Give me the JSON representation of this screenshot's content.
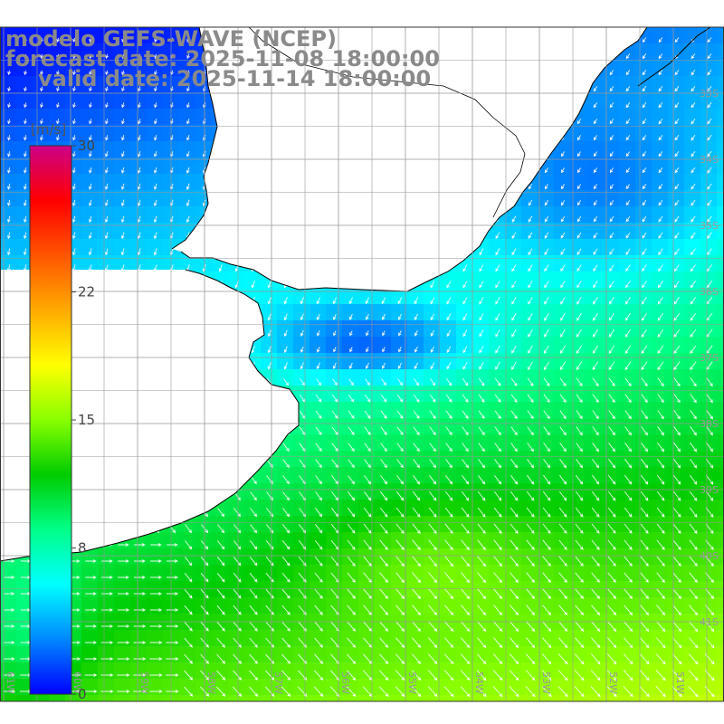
{
  "title": {
    "line1": "modelo GEFS-WAVE (NCEP)",
    "line2": "forecast date: 2025-11-08 18:00:00",
    "line3": "valid date: 2025-11-14 18:00:00"
  },
  "colorbar": {
    "unit": "[m/s]",
    "min": 0,
    "max": 30,
    "tick_labels": [
      "30",
      "22",
      "15",
      "8",
      "0"
    ],
    "tick_values": [
      30,
      22,
      15,
      8,
      0
    ],
    "colors": [
      "#0000ff",
      "#0088ff",
      "#00ffff",
      "#00ff88",
      "#00cc00",
      "#88ff00",
      "#ffff00",
      "#ffaa00",
      "#ff5500",
      "#ff0000",
      "#cc0088"
    ]
  },
  "map": {
    "lat_labels": [
      "33S",
      "34S",
      "35S",
      "36S",
      "37S",
      "38S",
      "39S",
      "40S",
      "41S"
    ],
    "lat_values": [
      -33,
      -34,
      -35,
      -36,
      -37,
      -38,
      -39,
      -40,
      -41
    ],
    "lon_labels": [
      "61W",
      "60W",
      "59W",
      "58W",
      "57W",
      "56W",
      "55W",
      "54W",
      "53W",
      "52W",
      "51W"
    ],
    "lon_values": [
      -61,
      -60,
      -59,
      -58,
      -57,
      -56,
      -55,
      -54,
      -53,
      -52,
      -51
    ],
    "land_color": "#ffffff",
    "grid_color": "#999999",
    "label_color": "#999999",
    "coast_color": "#000000",
    "arrow_color": "#ffffff"
  }
}
